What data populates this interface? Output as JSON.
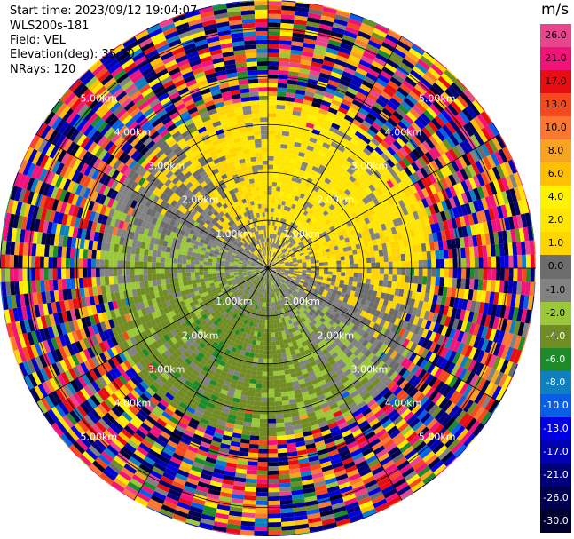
{
  "header": {
    "start_time": "Start time: 2023/09/12 19:04:07",
    "instrument": "WLS200s-181",
    "field": "Field: VEL",
    "elevation": "Elevation(deg): 35.30",
    "nrays": "NRays: 120"
  },
  "colorbar": {
    "unit": "m/s",
    "levels": [
      {
        "label": "26.0",
        "color": "#e8458f"
      },
      {
        "label": "21.0",
        "color": "#f0147a"
      },
      {
        "label": "17.0",
        "color": "#e60e12"
      },
      {
        "label": "13.0",
        "color": "#f34a1d"
      },
      {
        "label": "10.0",
        "color": "#fa7834"
      },
      {
        "label": "8.0",
        "color": "#f7a520"
      },
      {
        "label": "6.0",
        "color": "#ffc000"
      },
      {
        "label": "4.0",
        "color": "#fff200"
      },
      {
        "label": "2.0",
        "color": "#ffe600"
      },
      {
        "label": "1.0",
        "color": "#ffd500"
      },
      {
        "label": "0.0",
        "color": "#6c6c6c"
      },
      {
        "label": "-1.0",
        "color": "#828282"
      },
      {
        "label": "-2.0",
        "color": "#9ac83a"
      },
      {
        "label": "-4.0",
        "color": "#718c24"
      },
      {
        "label": "-6.0",
        "color": "#1f8a2a"
      },
      {
        "label": "-8.0",
        "color": "#0f7fbf"
      },
      {
        "label": "-10.0",
        "color": "#0a5ee6"
      },
      {
        "label": "-13.0",
        "color": "#0000e0"
      },
      {
        "label": "-17.0",
        "color": "#0000b4"
      },
      {
        "label": "-21.0",
        "color": "#00007a"
      },
      {
        "label": "-26.0",
        "color": "#000050"
      },
      {
        "label": "-30.0",
        "color": "#00002e"
      }
    ]
  },
  "range_labels": [
    "1.00km",
    "2.00km",
    "3.00km",
    "4.00km",
    "5.00km"
  ],
  "chart_data": {
    "type": "heatmap",
    "projection": "PPI (polar plan position indicator)",
    "field": "VEL",
    "units": "m/s",
    "elevation_deg": 35.3,
    "n_rays": 120,
    "range_rings_km": [
      1,
      2,
      3,
      4,
      5
    ],
    "max_range_km": 5.6,
    "spoke_count": 12,
    "velocity_range": [
      -30,
      26
    ],
    "pattern": {
      "inner_band_km": [
        0,
        3.5
      ],
      "north_east_sector_velocity": 3,
      "south_west_sector_velocity": -3,
      "outer_band_km": [
        3.5,
        5.6
      ],
      "outer_band": "noise (random colours)"
    }
  }
}
